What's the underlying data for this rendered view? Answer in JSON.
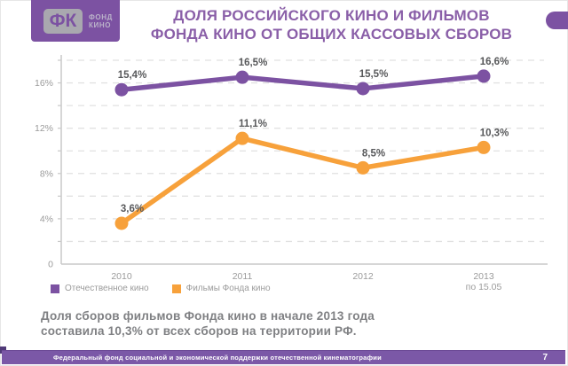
{
  "header": {
    "logo": {
      "abbr": "ФК",
      "name_line1": "ФОНД",
      "name_line2": "КИНО"
    },
    "title_line1": "ДОЛЯ РОССИЙСКОГО КИНО И ФИЛЬМОВ",
    "title_line2": "ФОНДА КИНО ОТ ОБЩИХ КАССОВЫХ СБОРОВ"
  },
  "chart_data": {
    "type": "line",
    "categories": [
      "2010",
      "2011",
      "2012",
      "2013"
    ],
    "category_note": {
      "index": 3,
      "text": "по 15.05"
    },
    "series": [
      {
        "name": "Отечественное кино",
        "color": "#7C52A2",
        "values": [
          15.4,
          16.5,
          15.5,
          16.6
        ],
        "labels": [
          "15,4%",
          "16,5%",
          "15,5%",
          "16,6%"
        ]
      },
      {
        "name": "Фильмы Фонда кино",
        "color": "#F7A13B",
        "values": [
          3.6,
          11.1,
          8.5,
          10.3
        ],
        "labels": [
          "3,6%",
          "11,1%",
          "8,5%",
          "10,3%"
        ]
      }
    ],
    "ylim": [
      0,
      18
    ],
    "y_tick_values": [
      0,
      4,
      8,
      12,
      16
    ],
    "y_tick_labels": [
      "0",
      "4%",
      "8%",
      "12%",
      "16%"
    ],
    "grid_step": 2,
    "grid": "dashed",
    "legend_position": "bottom-left"
  },
  "caption": {
    "line1": "Доля сборов фильмов Фонда кино в начале 2013 года",
    "line2": "составила 10,3% от всех сборов на территории РФ."
  },
  "footer": {
    "text": "Федеральный фонд социальной и экономической поддержки отечественной кинематографии",
    "page": "7"
  },
  "colors": {
    "purple": "#7C52A2",
    "orange": "#F7A13B",
    "title": "#8A5FA8",
    "data_label": "#58595B",
    "axis_text": "#9B9B9B",
    "grid": "#E1E1E1",
    "axis_line": "#C9C9C9",
    "caption": "#7F8083",
    "footer_bar": "#7B58A7"
  }
}
